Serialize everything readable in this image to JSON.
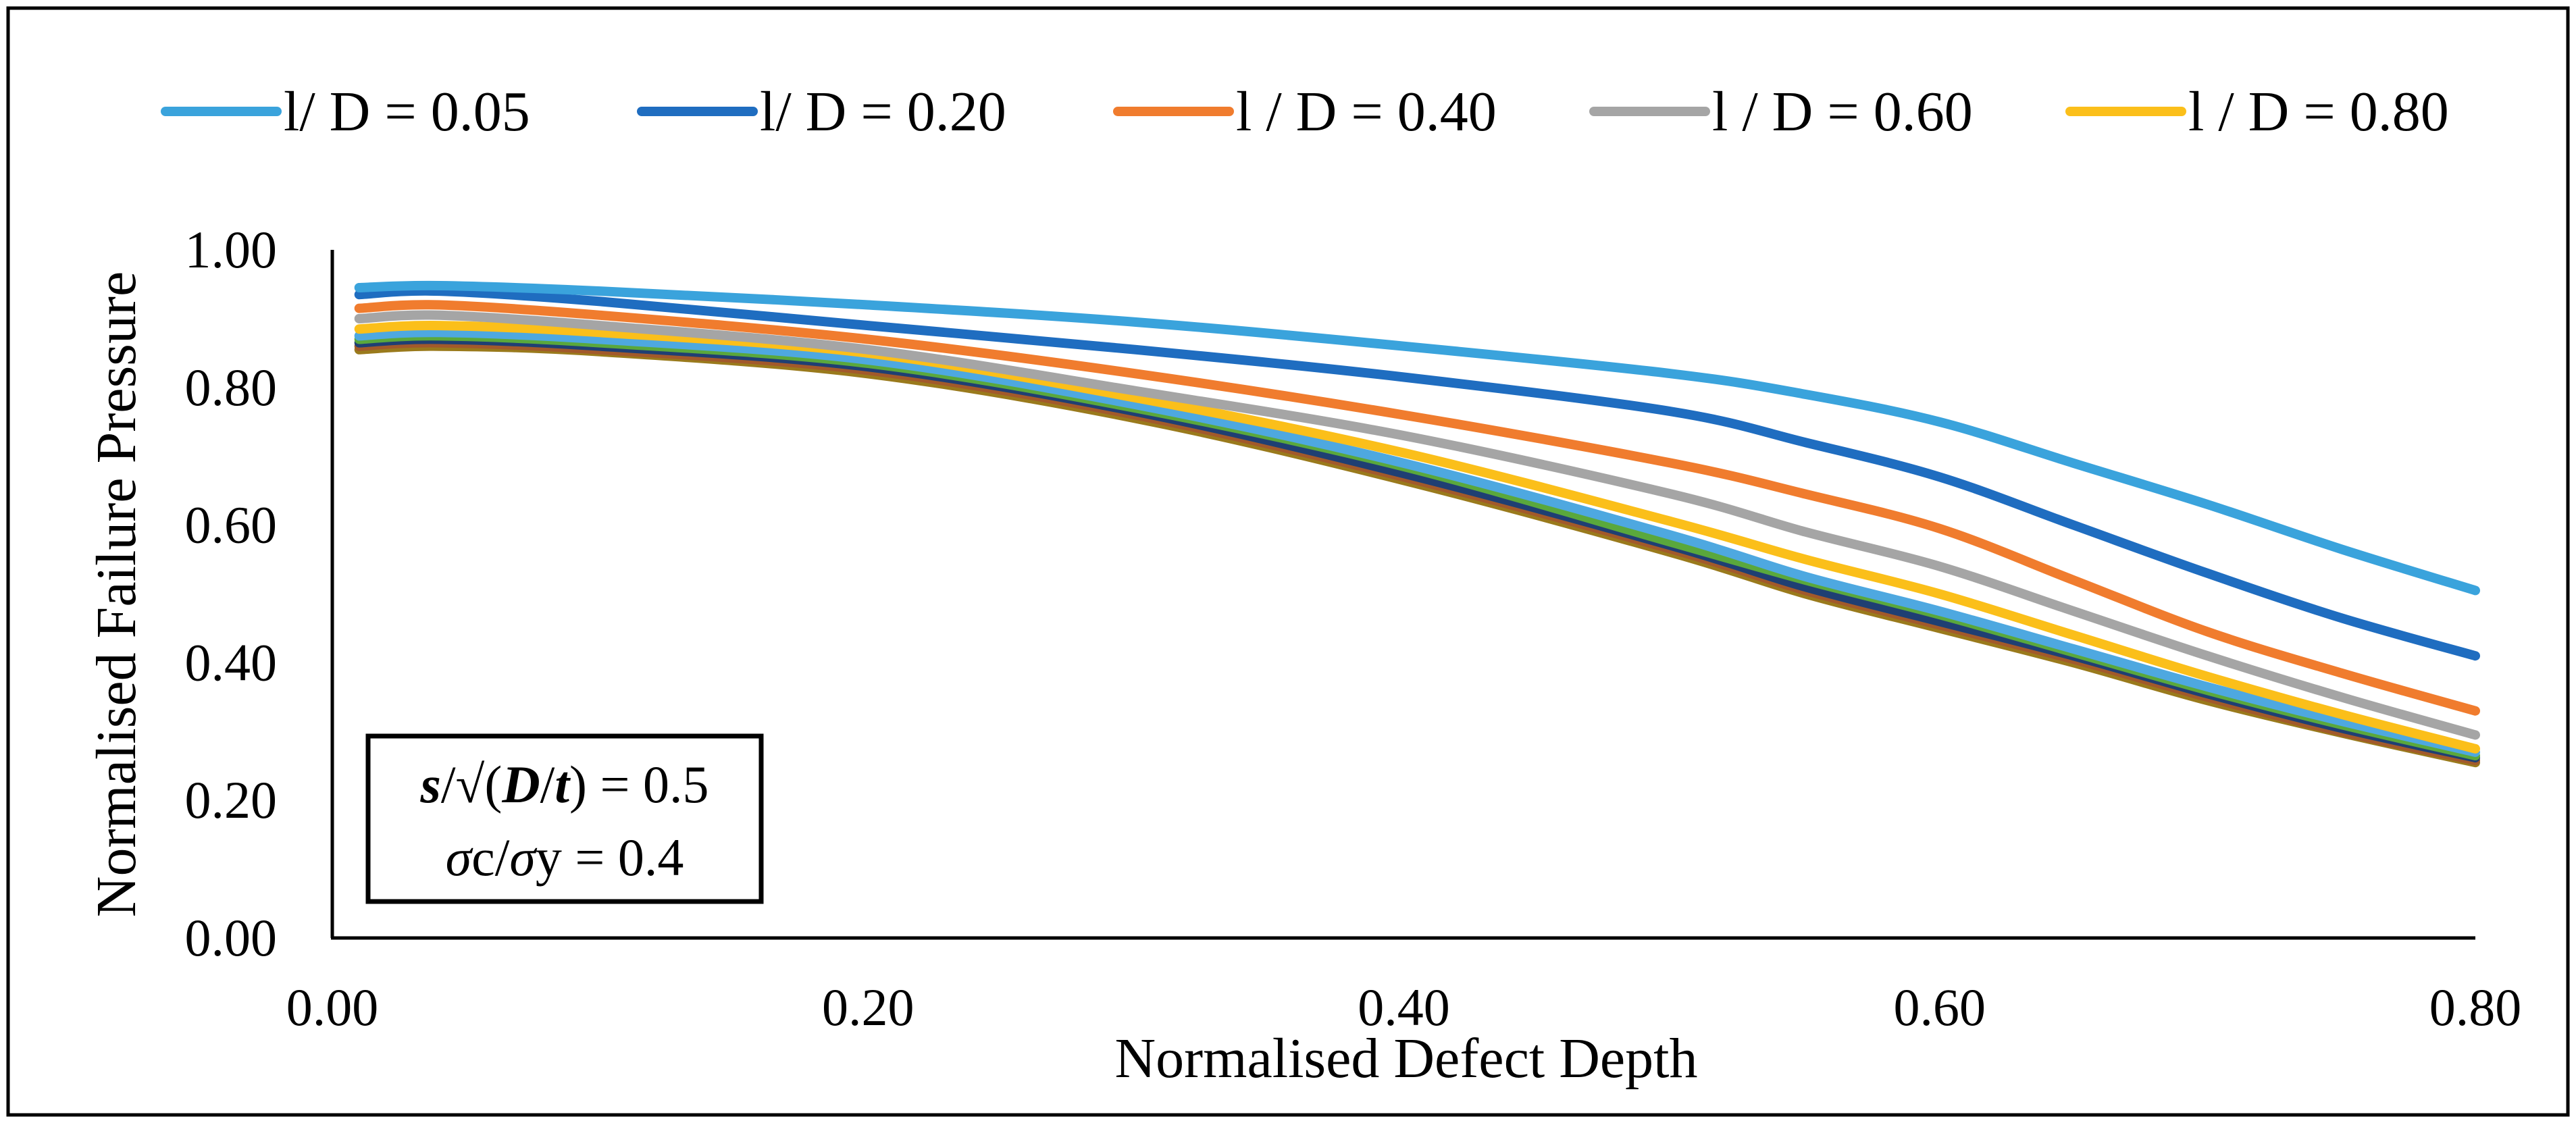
{
  "chart_data": {
    "type": "line",
    "title": "",
    "xlabel": "Normalised Defect Depth",
    "ylabel": "Normalised Failure Pressure",
    "xlim": [
      0,
      0.8
    ],
    "ylim": [
      0,
      1
    ],
    "x_ticks": [
      "0.00",
      "0.20",
      "0.40",
      "0.60",
      "0.80"
    ],
    "y_ticks": [
      "0.00",
      "0.20",
      "0.40",
      "0.60",
      "0.80",
      "1.00"
    ],
    "grid": false,
    "legend_position": "top",
    "annotation": {
      "line1_s": "s",
      "line1_slash": "/√(",
      "line1_D": "D",
      "line1_slash2": "/",
      "line1_t": "t",
      "line1_end": ") = 0.5",
      "line2_sigma1": "σ",
      "line2_c": "c/",
      "line2_sigma2": "σ",
      "line2_end": "y = 0.4"
    },
    "series": [
      {
        "name": "l/ D = 0.05",
        "color": "#3aa3dc",
        "legend": true,
        "x": [
          0.01,
          0.04,
          0.1,
          0.2,
          0.3,
          0.4,
          0.5,
          0.55,
          0.6,
          0.65,
          0.7,
          0.75,
          0.8
        ],
        "y": [
          0.945,
          0.948,
          0.94,
          0.92,
          0.895,
          0.86,
          0.82,
          0.79,
          0.75,
          0.69,
          0.63,
          0.565,
          0.505
        ]
      },
      {
        "name": "l/ D = 0.20",
        "color": "#1f6dc0",
        "legend": true,
        "x": [
          0.01,
          0.04,
          0.1,
          0.2,
          0.3,
          0.4,
          0.5,
          0.55,
          0.6,
          0.65,
          0.7,
          0.75,
          0.8
        ],
        "y": [
          0.935,
          0.94,
          0.925,
          0.89,
          0.855,
          0.815,
          0.765,
          0.72,
          0.67,
          0.6,
          0.53,
          0.465,
          0.41
        ]
      },
      {
        "name": "l / D = 0.40",
        "color": "#f07c2e",
        "legend": true,
        "x": [
          0.01,
          0.04,
          0.1,
          0.2,
          0.3,
          0.4,
          0.5,
          0.55,
          0.6,
          0.65,
          0.7,
          0.75,
          0.8
        ],
        "y": [
          0.915,
          0.92,
          0.905,
          0.87,
          0.82,
          0.76,
          0.69,
          0.645,
          0.595,
          0.52,
          0.445,
          0.385,
          0.33
        ]
      },
      {
        "name": "l / D = 0.60",
        "color": "#a5a5a5",
        "legend": true,
        "x": [
          0.01,
          0.04,
          0.1,
          0.2,
          0.3,
          0.4,
          0.5,
          0.55,
          0.6,
          0.65,
          0.7,
          0.75,
          0.8
        ],
        "y": [
          0.9,
          0.905,
          0.89,
          0.855,
          0.795,
          0.73,
          0.645,
          0.59,
          0.54,
          0.475,
          0.41,
          0.35,
          0.295
        ]
      },
      {
        "name": "l / D = 0.80",
        "color": "#fbbf1a",
        "legend": true,
        "x": [
          0.01,
          0.04,
          0.1,
          0.2,
          0.3,
          0.4,
          0.5,
          0.55,
          0.6,
          0.65,
          0.7,
          0.75,
          0.8
        ],
        "y": [
          0.885,
          0.89,
          0.88,
          0.85,
          0.785,
          0.705,
          0.605,
          0.55,
          0.5,
          0.44,
          0.38,
          0.325,
          0.275
        ]
      },
      {
        "name": "",
        "color": "#4ea8e0",
        "legend": false,
        "x": [
          0.01,
          0.04,
          0.1,
          0.2,
          0.3,
          0.4,
          0.5,
          0.55,
          0.6,
          0.65,
          0.7,
          0.75,
          0.8
        ],
        "y": [
          0.875,
          0.88,
          0.87,
          0.84,
          0.775,
          0.69,
          0.585,
          0.525,
          0.475,
          0.42,
          0.365,
          0.315,
          0.27
        ]
      },
      {
        "name": "",
        "color": "#5aa83c",
        "legend": false,
        "x": [
          0.01,
          0.04,
          0.1,
          0.2,
          0.3,
          0.4,
          0.5,
          0.55,
          0.6,
          0.65,
          0.7,
          0.75,
          0.8
        ],
        "y": [
          0.87,
          0.875,
          0.865,
          0.835,
          0.77,
          0.685,
          0.575,
          0.52,
          0.47,
          0.415,
          0.36,
          0.31,
          0.265
        ]
      },
      {
        "name": "",
        "color": "#1f3f73",
        "legend": false,
        "x": [
          0.01,
          0.04,
          0.1,
          0.2,
          0.3,
          0.4,
          0.5,
          0.55,
          0.6,
          0.65,
          0.7,
          0.75,
          0.8
        ],
        "y": [
          0.865,
          0.87,
          0.86,
          0.83,
          0.765,
          0.675,
          0.57,
          0.51,
          0.46,
          0.41,
          0.355,
          0.305,
          0.262
        ]
      },
      {
        "name": "",
        "color": "#a2592b",
        "legend": false,
        "x": [
          0.01,
          0.04,
          0.1,
          0.2,
          0.3,
          0.4,
          0.5,
          0.55,
          0.6,
          0.65,
          0.7,
          0.75,
          0.8
        ],
        "y": [
          0.86,
          0.865,
          0.855,
          0.825,
          0.76,
          0.67,
          0.565,
          0.505,
          0.455,
          0.405,
          0.35,
          0.3,
          0.258
        ]
      },
      {
        "name": "",
        "color": "#9a7a1c",
        "legend": false,
        "x": [
          0.01,
          0.04,
          0.1,
          0.2,
          0.3,
          0.4,
          0.5,
          0.55,
          0.6,
          0.65,
          0.7,
          0.75,
          0.8
        ],
        "y": [
          0.855,
          0.86,
          0.852,
          0.82,
          0.755,
          0.665,
          0.56,
          0.5,
          0.45,
          0.4,
          0.345,
          0.298,
          0.255
        ]
      }
    ]
  }
}
